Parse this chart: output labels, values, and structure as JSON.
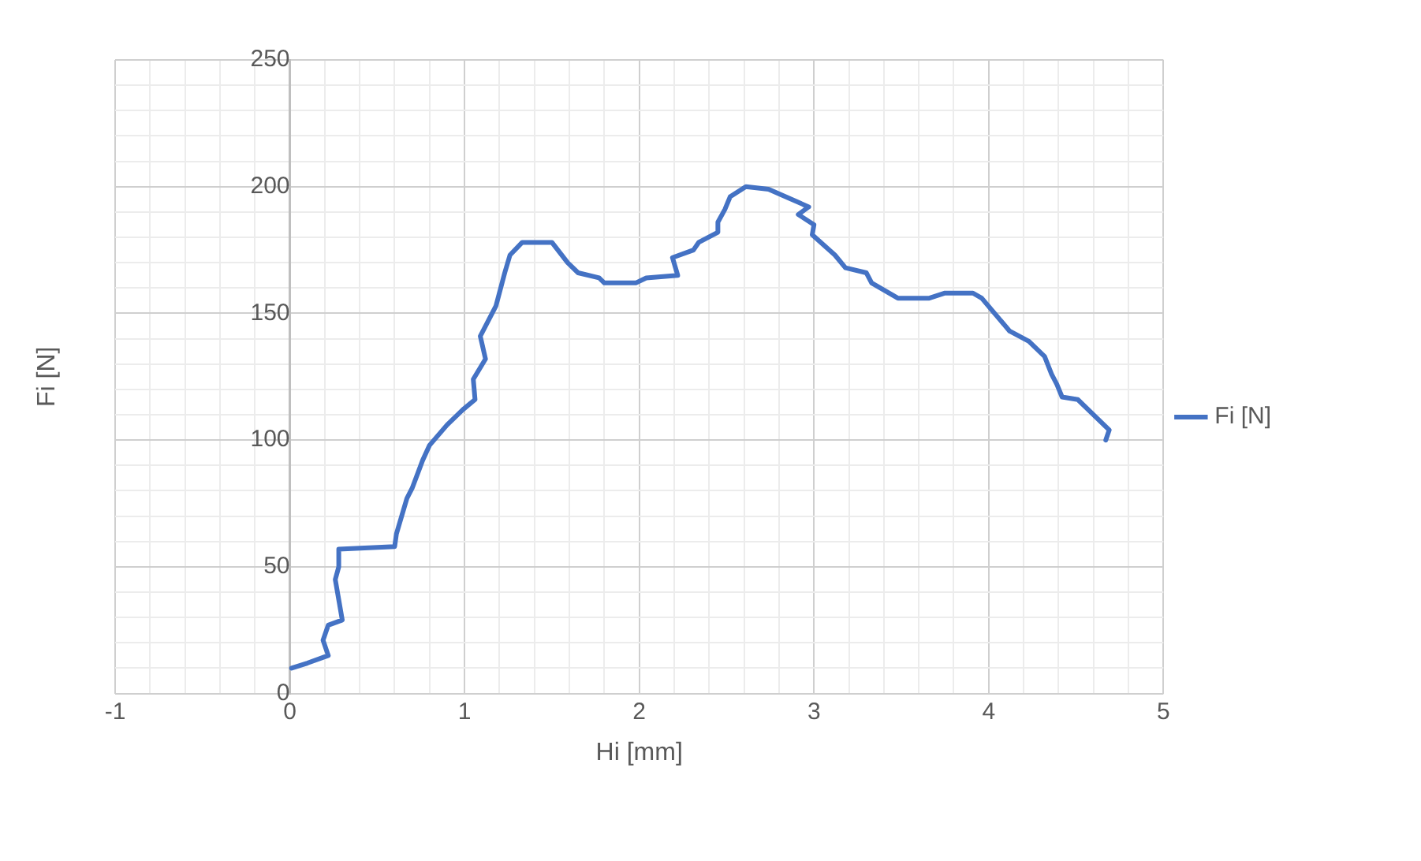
{
  "chart_data": {
    "type": "line",
    "xlabel": "Hi [mm]",
    "ylabel": "Fi [N]",
    "legend": "right",
    "grid": true,
    "marker": "none",
    "line_style": "solid",
    "xlim": [
      -1,
      5
    ],
    "ylim": [
      0,
      250
    ],
    "xticks": [
      -1,
      {
        "value": -0.8,
        "label": null
      },
      {
        "value": -0.6,
        "label": null
      },
      {
        "value": -0.4,
        "label": null
      },
      {
        "value": -0.2,
        "label": null
      },
      0,
      {
        "value": 0.2,
        "label": null
      },
      {
        "value": 0.4,
        "label": null
      },
      {
        "value": 0.6,
        "label": null
      },
      {
        "value": 0.8,
        "label": null
      },
      1,
      {
        "value": 1.2,
        "label": null
      },
      {
        "value": 1.4,
        "label": null
      },
      {
        "value": 1.6,
        "label": null
      },
      {
        "value": 1.8,
        "label": null
      },
      2,
      {
        "value": 2.2,
        "label": null
      },
      {
        "value": 2.4,
        "label": null
      },
      {
        "value": 2.6,
        "label": null
      },
      {
        "value": 2.8,
        "label": null
      },
      3,
      {
        "value": 3.2,
        "label": null
      },
      {
        "value": 3.4,
        "label": null
      },
      {
        "value": 3.6,
        "label": null
      },
      {
        "value": 3.8,
        "label": null
      },
      4,
      {
        "value": 4.2,
        "label": null
      },
      {
        "value": 4.4,
        "label": null
      },
      {
        "value": 4.6,
        "label": null
      },
      {
        "value": 4.8,
        "label": null
      },
      5
    ],
    "yticks": [
      0,
      {
        "value": 10,
        "label": null
      },
      {
        "value": 20,
        "label": null
      },
      {
        "value": 30,
        "label": null
      },
      {
        "value": 40,
        "label": null
      },
      50,
      {
        "value": 60,
        "label": null
      },
      {
        "value": 70,
        "label": null
      },
      {
        "value": 80,
        "label": null
      },
      {
        "value": 90,
        "label": null
      },
      100,
      {
        "value": 110,
        "label": null
      },
      {
        "value": 120,
        "label": null
      },
      {
        "value": 130,
        "label": null
      },
      {
        "value": 140,
        "label": null
      },
      150,
      {
        "value": 160,
        "label": null
      },
      {
        "value": 170,
        "label": null
      },
      {
        "value": 180,
        "label": null
      },
      {
        "value": 190,
        "label": null
      },
      200,
      {
        "value": 210,
        "label": null
      },
      {
        "value": 220,
        "label": null
      },
      {
        "value": 230,
        "label": null
      },
      {
        "value": 240,
        "label": null
      },
      250
    ],
    "series": [
      {
        "name": "Fi [N]",
        "color": "#4472c4",
        "x": [
          0.01,
          0.1,
          0.22,
          0.19,
          0.22,
          0.3,
          0.26,
          0.28,
          0.28,
          0.6,
          0.61,
          0.67,
          0.7,
          0.76,
          0.8,
          0.9,
          0.99,
          1.06,
          1.05,
          1.12,
          1.09,
          1.18,
          1.23,
          1.26,
          1.33,
          1.5,
          1.59,
          1.65,
          1.77,
          1.8,
          1.98,
          2.04,
          2.22,
          2.19,
          2.31,
          2.34,
          2.45,
          2.45,
          2.49,
          2.52,
          2.61,
          2.74,
          2.97,
          2.91,
          3.0,
          2.99,
          3.12,
          3.18,
          3.3,
          3.33,
          3.48,
          3.66,
          3.75,
          3.91,
          3.96,
          4.12,
          4.23,
          4.32,
          4.36,
          4.39,
          4.42,
          4.51,
          4.69,
          4.67
        ],
        "values": [
          10,
          12,
          15,
          21,
          27,
          29,
          45,
          50,
          57,
          58,
          63,
          77,
          81,
          92,
          98,
          106,
          112,
          116,
          124,
          132,
          141,
          153,
          166,
          173,
          178,
          178,
          170,
          166,
          164,
          162,
          162,
          164,
          165,
          172,
          175,
          178,
          182,
          186,
          191,
          196,
          200,
          199,
          192,
          189,
          185,
          181,
          173,
          168,
          166,
          162,
          156,
          156,
          158,
          158,
          156,
          143,
          139,
          133,
          126,
          122,
          117,
          116,
          104,
          100
        ]
      }
    ]
  }
}
